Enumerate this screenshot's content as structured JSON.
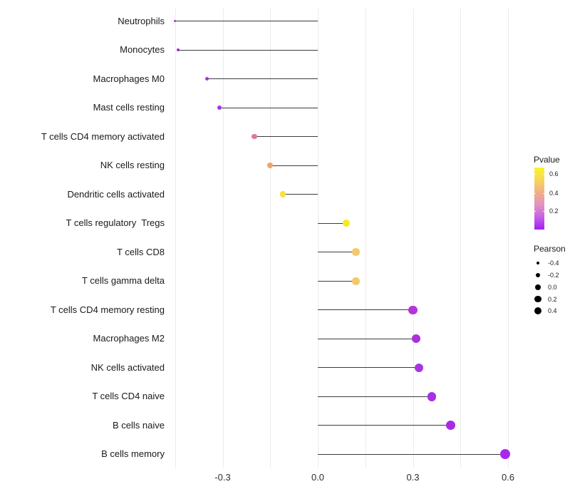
{
  "chart_data": {
    "type": "scatter",
    "variant": "lollipop",
    "title": "",
    "xlabel": "",
    "ylabel": "",
    "categories": [
      "Neutrophils",
      "Monocytes",
      "Macrophages M0",
      "Mast cells resting",
      "T cells CD4 memory activated",
      "NK cells resting",
      "Dendritic cells activated",
      "T cells regulatory  Tregs",
      "T cells CD8",
      "T cells gamma delta",
      "T cells CD4 memory resting",
      "Macrophages M2",
      "NK cells activated",
      "T cells CD4 naive",
      "B cells naive",
      "B cells memory"
    ],
    "series": [
      {
        "name": "Pearson",
        "values": [
          -0.45,
          -0.44,
          -0.35,
          -0.31,
          -0.2,
          -0.15,
          -0.11,
          0.09,
          0.12,
          0.12,
          0.3,
          0.31,
          0.32,
          0.36,
          0.42,
          0.59
        ]
      }
    ],
    "point_colors": [
      "#A132D2",
      "#A22BD8",
      "#A832E0",
      "#A832E0",
      "#DF7992",
      "#F0A566",
      "#F7E13B",
      "#F9EA15",
      "#F2C96B",
      "#F2C96B",
      "#B335D8",
      "#AC2FDC",
      "#A836DE",
      "#A92FE2",
      "#A72BE6",
      "#A728EC"
    ],
    "xlim": [
      -0.47,
      0.72
    ],
    "x_ticks": {
      "labels": [
        "-0.3",
        "0.0",
        "0.3",
        "0.6"
      ],
      "values": [
        -0.3,
        0.0,
        0.3,
        0.6
      ]
    },
    "x_gridlines": [
      -0.45,
      -0.3,
      -0.15,
      0.0,
      0.15,
      0.3,
      0.45,
      0.6
    ],
    "grid": "vertical",
    "legend_position": "right",
    "legend": {
      "pvalue": {
        "title": "Pvalue",
        "tick_labels": [
          "0.6",
          "0.4",
          "0.2"
        ],
        "gradient_top_to_bottom": [
          "#FBF524",
          "#F7D75C",
          "#F0AF83",
          "#E393BE",
          "#C760E8",
          "#A11EF2"
        ]
      },
      "pearson": {
        "title": "Pearson",
        "labels": [
          "-0.4",
          "-0.2",
          "0.0",
          "0.2",
          "0.4"
        ],
        "values": [
          -0.4,
          -0.2,
          0.0,
          0.2,
          0.4
        ]
      }
    }
  },
  "colors": {
    "background": "#FFFFFF",
    "stem": "#3C3C3C",
    "gridline": "#ECECEC",
    "axis_text": "#2E2E2E",
    "label_text": "#1A1A1A",
    "legend_dot": "#000000"
  }
}
